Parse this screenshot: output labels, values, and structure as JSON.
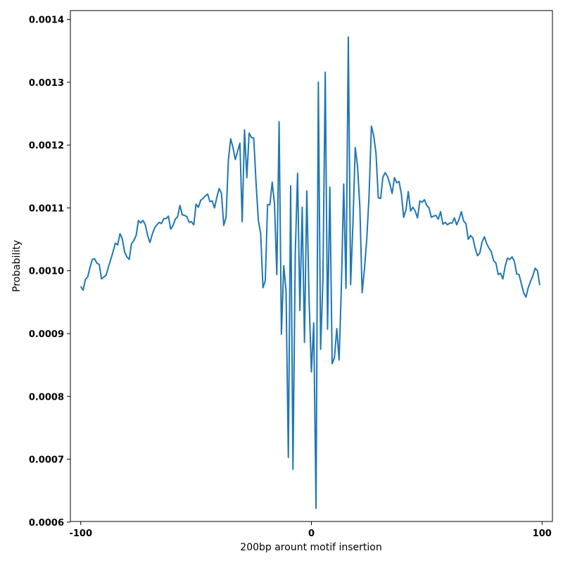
{
  "chart_data": {
    "type": "line",
    "title": "",
    "xlabel": "200bp arount motif insertion",
    "ylabel": "Probability",
    "xlim": [
      -104.5,
      104.5
    ],
    "ylim": [
      0.000601,
      0.001414
    ],
    "xticks": [
      -100,
      0,
      100
    ],
    "xtick_labels": [
      "-100",
      "0",
      "100"
    ],
    "yticks": [
      0.0006,
      0.0007,
      0.0008,
      0.0009,
      0.001,
      0.0011,
      0.0012,
      0.0013,
      0.0014
    ],
    "ytick_labels": [
      "0.0006",
      "0.0007",
      "0.0008",
      "0.0009",
      "0.0010",
      "0.0011",
      "0.0012",
      "0.0013",
      "0.0014"
    ],
    "grid": false,
    "line_color": "#1f77b4",
    "series": [
      {
        "x_start": -100,
        "x_step": 1,
        "values": [
          0.000975,
          0.000969,
          0.000986,
          0.00099,
          0.001005,
          0.001018,
          0.001019,
          0.001012,
          0.00101,
          0.000987,
          0.00099,
          0.000993,
          0.001006,
          0.001018,
          0.00103,
          0.001044,
          0.001041,
          0.001059,
          0.001051,
          0.00103,
          0.001022,
          0.001018,
          0.001043,
          0.001048,
          0.001056,
          0.00108,
          0.001076,
          0.00108,
          0.001073,
          0.001056,
          0.001045,
          0.001058,
          0.001068,
          0.001073,
          0.001077,
          0.001075,
          0.001083,
          0.001083,
          0.001087,
          0.001066,
          0.001072,
          0.001082,
          0.001086,
          0.001104,
          0.001089,
          0.001088,
          0.001086,
          0.001077,
          0.001078,
          0.001073,
          0.001106,
          0.001101,
          0.001112,
          0.001115,
          0.001119,
          0.001122,
          0.00111,
          0.001111,
          0.0011,
          0.001117,
          0.001131,
          0.001123,
          0.001072,
          0.001085,
          0.001176,
          0.00121,
          0.001196,
          0.001177,
          0.00119,
          0.001203,
          0.001078,
          0.001224,
          0.001148,
          0.001219,
          0.001212,
          0.001211,
          0.00114,
          0.00108,
          0.001059,
          0.000973,
          0.000984,
          0.001105,
          0.001105,
          0.001141,
          0.001106,
          0.000994,
          0.001237,
          0.000899,
          0.001008,
          0.000968,
          0.000703,
          0.001135,
          0.000684,
          0.001026,
          0.001155,
          0.000937,
          0.001101,
          0.000886,
          0.001127,
          0.000952,
          0.000839,
          0.000917,
          0.000622,
          0.0013,
          0.000875,
          0.000988,
          0.001316,
          0.000907,
          0.001133,
          0.000852,
          0.000862,
          0.000908,
          0.000858,
          0.000975,
          0.001138,
          0.000972,
          0.001372,
          0.000978,
          0.001074,
          0.001196,
          0.001166,
          0.001102,
          0.000965,
          0.001003,
          0.00105,
          0.00112,
          0.00123,
          0.001215,
          0.001187,
          0.001116,
          0.001115,
          0.001149,
          0.001156,
          0.00115,
          0.001138,
          0.001123,
          0.001148,
          0.00114,
          0.001142,
          0.001122,
          0.001085,
          0.001097,
          0.001126,
          0.001095,
          0.001101,
          0.001095,
          0.001084,
          0.001111,
          0.001109,
          0.001113,
          0.001104,
          0.0011,
          0.001085,
          0.001087,
          0.001088,
          0.001082,
          0.001094,
          0.001074,
          0.001077,
          0.001073,
          0.001076,
          0.001076,
          0.001084,
          0.001073,
          0.001082,
          0.001094,
          0.001079,
          0.001075,
          0.00105,
          0.001056,
          0.001052,
          0.001036,
          0.001024,
          0.001028,
          0.001046,
          0.001054,
          0.001043,
          0.001036,
          0.00103,
          0.001016,
          0.001012,
          0.000994,
          0.000996,
          0.000987,
          0.001007,
          0.00102,
          0.001018,
          0.001022,
          0.001015,
          0.000995,
          0.000994,
          0.00098,
          0.000965,
          0.000958,
          0.000973,
          0.000983,
          0.000992,
          0.001004,
          0.001,
          0.000977
        ]
      }
    ]
  }
}
